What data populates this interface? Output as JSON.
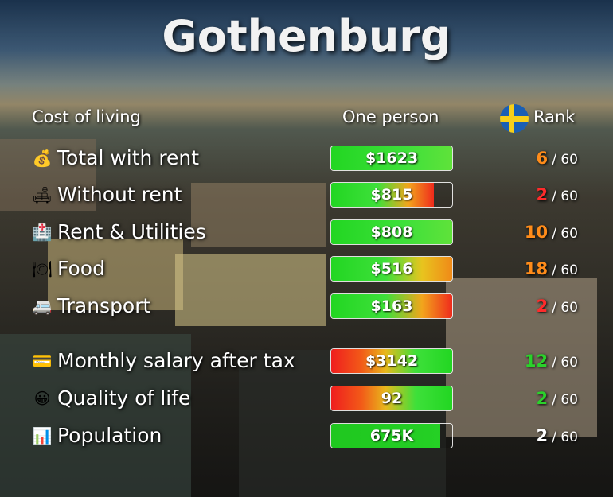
{
  "title": "Gothenburg",
  "headers": {
    "category": "Cost of living",
    "value": "One person",
    "rank": "Rank"
  },
  "colors": {
    "green": "#2bd12b",
    "orange": "#ff8c1a",
    "red": "#ff2b2b",
    "white": "#ffffff"
  },
  "rows": [
    {
      "emoji": "💰",
      "icon": "money-bag-icon",
      "label": "Total with rent",
      "value": "$1623",
      "rank": "6",
      "of": "/ 60",
      "rank_color": "#ff8c1a",
      "fill": 1.0,
      "gradient": "green"
    },
    {
      "emoji": "🛋",
      "icon": "couch-icon",
      "label": "Without rent",
      "value": "$815",
      "rank": "2",
      "of": "/ 60",
      "rank_color": "#ff2b2b",
      "fill": 0.85,
      "gradient": "green-red"
    },
    {
      "emoji": "🏥",
      "icon": "building-icon",
      "label": "Rent & Utilities",
      "value": "$808",
      "rank": "10",
      "of": "/ 60",
      "rank_color": "#ff8c1a",
      "fill": 1.0,
      "gradient": "green"
    },
    {
      "emoji": "🍽",
      "icon": "plate-icon",
      "label": "Food",
      "value": "$516",
      "rank": "18",
      "of": "/ 60",
      "rank_color": "#ff8c1a",
      "fill": 1.0,
      "gradient": "green-orange"
    },
    {
      "emoji": "🚐",
      "icon": "van-icon",
      "label": "Transport",
      "value": "$163",
      "rank": "2",
      "of": "/ 60",
      "rank_color": "#ff2b2b",
      "fill": 1.0,
      "gradient": "green-red"
    },
    {
      "emoji": "💳",
      "icon": "card-icon",
      "label": "Monthly salary after tax",
      "value": "$3142",
      "rank": "12",
      "of": "/ 60",
      "rank_color": "#2bd12b",
      "fill": 1.0,
      "gradient": "red-green"
    },
    {
      "emoji": "😀",
      "icon": "smiley-icon",
      "label": "Quality of life",
      "value": "92",
      "rank": "2",
      "of": "/ 60",
      "rank_color": "#2bd12b",
      "fill": 1.0,
      "gradient": "red-green"
    },
    {
      "emoji": "📊",
      "icon": "chart-icon",
      "label": "Population",
      "value": "675K",
      "rank": "2",
      "of": "/ 60",
      "rank_color": "#ffffff",
      "fill": 0.9,
      "gradient": "solid-green"
    }
  ]
}
